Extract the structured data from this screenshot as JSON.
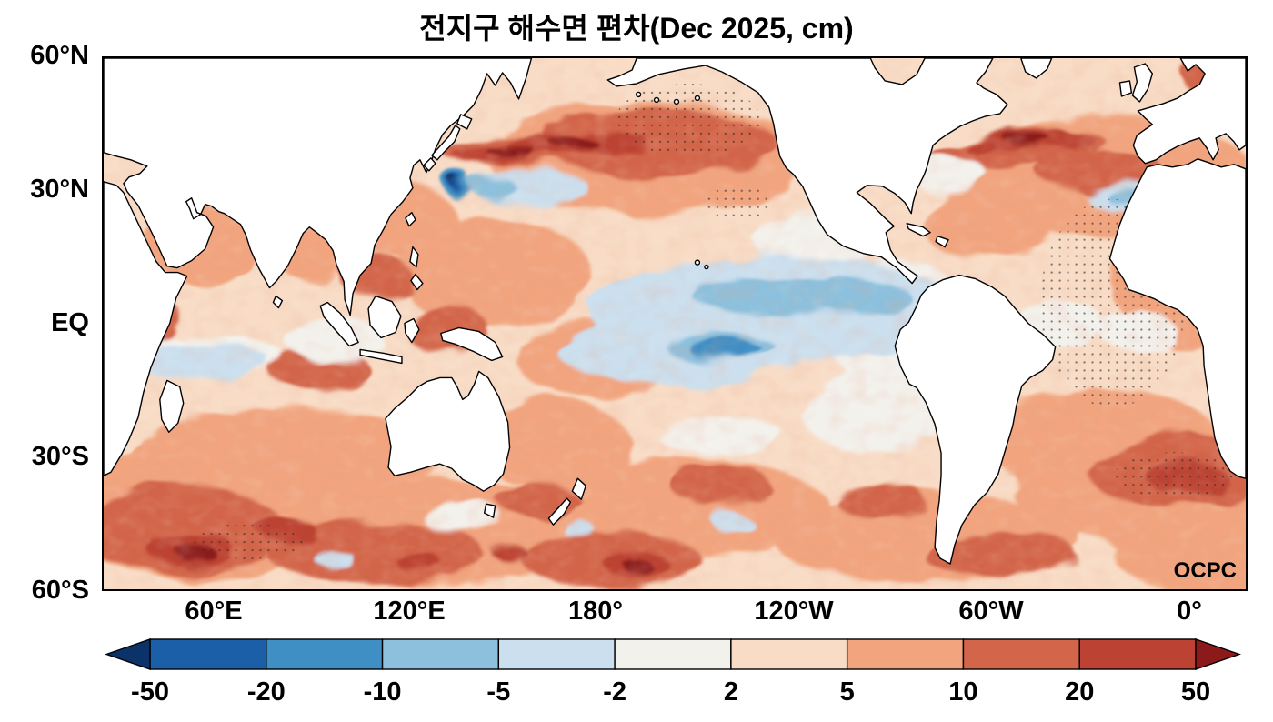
{
  "title": "전지구 해수면 편차(Dec 2025, cm)",
  "watermark": "OCPC",
  "axes": {
    "lat_ticks": [
      "60°N",
      "30°N",
      "EQ",
      "30°S",
      "60°S"
    ],
    "lon_ticks": [
      "60°E",
      "120°E",
      "180°",
      "120°W",
      "60°W",
      "0°"
    ]
  },
  "chart_data": {
    "type": "heatmap",
    "title": "전지구 해수면 편차(Dec 2025, cm)",
    "subject": "Global sea level (sea surface height) anomaly map",
    "month": "Dec 2025",
    "unit": "cm",
    "lat_range": [
      -60,
      60
    ],
    "lat_ticks": [
      "60°N",
      "30°N",
      "EQ",
      "30°S",
      "60°S"
    ],
    "lon_ticks": [
      "60°E",
      "120°E",
      "180°",
      "120°W",
      "60°W",
      "0°"
    ],
    "colorbar": {
      "ticks": [
        -50,
        -20,
        -10,
        -5,
        -2,
        2,
        5,
        10,
        20,
        50
      ],
      "colors": [
        "#0b3269",
        "#1a5fa8",
        "#3f8fc4",
        "#8cc0dc",
        "#cbdfee",
        "#f3f1ec",
        "#f8dcc6",
        "#f1a47e",
        "#d2654a",
        "#bc4333",
        "#8c1a1b"
      ],
      "extend": "both"
    },
    "annotation": "OCPC",
    "features": [
      {
        "region": "Kuroshio Extension east of Japan",
        "anomaly_cm": "+20 to +50"
      },
      {
        "region": "Gulf Stream off the US east coast",
        "anomaly_cm": "+20 to +50"
      },
      {
        "region": "Central equatorial Pacific",
        "anomaly_cm": "-2 to -10"
      },
      {
        "region": "Eastern equatorial Pacific",
        "anomaly_cm": "-2 to +2"
      },
      {
        "region": "Northeast Pacific (stippled)",
        "anomaly_cm": "+10 to +20"
      },
      {
        "region": "Eastern North Atlantic (stippled)",
        "anomaly_cm": "+5 to +20"
      },
      {
        "region": "Southern Ocean mid-latitude band",
        "anomaly_cm": "+5 to +20 with cores above +20"
      },
      {
        "region": "Most of the global ocean",
        "anomaly_cm": "+2 to +10"
      },
      {
        "region": "Western equatorial Indian Ocean",
        "anomaly_cm": "-2 to -5"
      },
      {
        "region": "Cold eddy south of Japan",
        "anomaly_cm": "-20 to -50"
      }
    ]
  }
}
